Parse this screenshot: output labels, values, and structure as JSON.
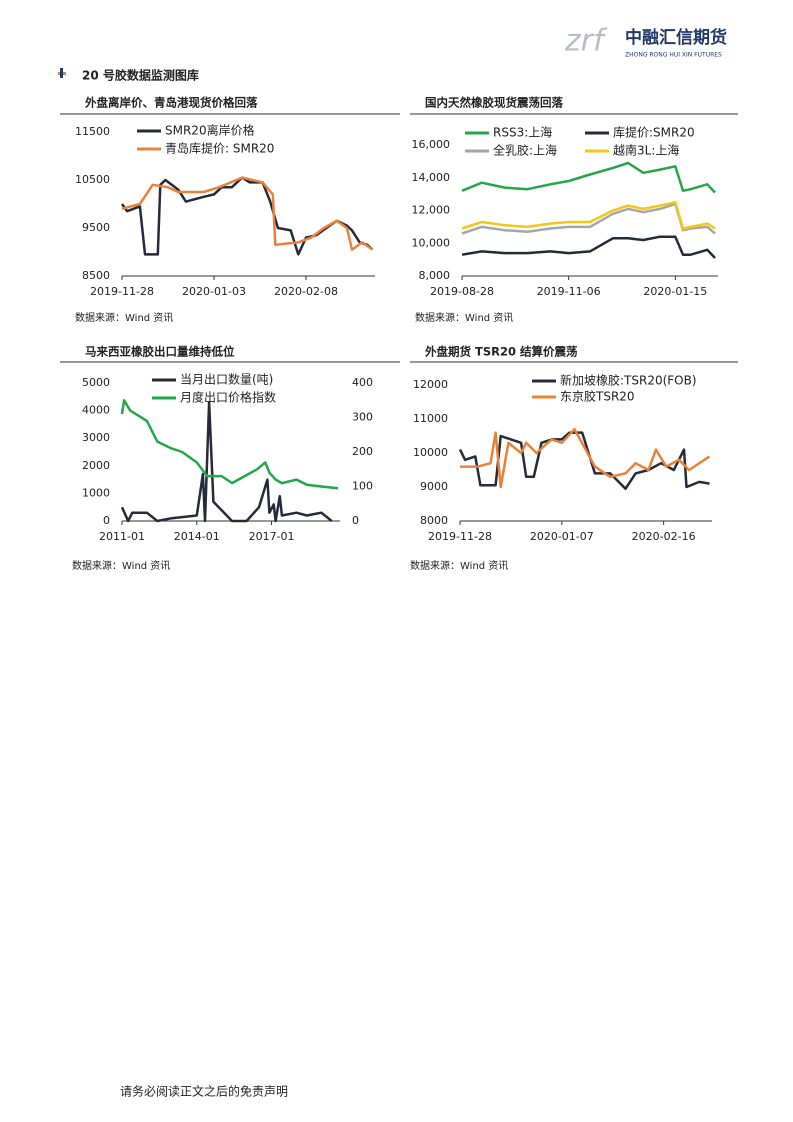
{
  "header": {
    "logo_cn": "中融汇信期货",
    "logo_en": "ZHONG RONG HUI XIN FUTURES"
  },
  "section_title": "20 号胶数据监测图库",
  "footer": "请务必阅读正文之后的免责声明",
  "chart_data": [
    {
      "type": "line",
      "title": "外盘离岸价、青岛港现货价格回落",
      "source": "数据来源：Wind 资讯",
      "xlim": [
        "2019-11-28",
        "2020-03-06"
      ],
      "xticks": [
        "2019-11-28",
        "2020-01-03",
        "2020-02-08"
      ],
      "ylim": [
        8500,
        11500
      ],
      "yticks": [
        8500,
        9500,
        10500,
        11500
      ],
      "series": [
        {
          "name": "SMR20离岸价格",
          "color": "#252b3a",
          "x": [
            "2019-11-28",
            "2019-11-30",
            "2019-12-05",
            "2019-12-07",
            "2019-12-12",
            "2019-12-13",
            "2019-12-15",
            "2019-12-20",
            "2019-12-23",
            "2019-12-30",
            "2020-01-03",
            "2020-01-06",
            "2020-01-10",
            "2020-01-14",
            "2020-01-17",
            "2020-01-22",
            "2020-01-25",
            "2020-01-28",
            "2020-02-02",
            "2020-02-05",
            "2020-02-08",
            "2020-02-12",
            "2020-02-16",
            "2020-02-20",
            "2020-02-24",
            "2020-02-26",
            "2020-02-29",
            "2020-03-03",
            "2020-03-05"
          ],
          "values": [
            10000,
            9850,
            9950,
            8950,
            8950,
            10400,
            10500,
            10300,
            10050,
            10150,
            10200,
            10350,
            10350,
            10550,
            10450,
            10450,
            10050,
            9500,
            9450,
            8950,
            9300,
            9350,
            9500,
            9650,
            9550,
            9450,
            9200,
            9150,
            9050
          ]
        },
        {
          "name": "青岛库提价: SMR20",
          "color": "#e8823a",
          "x": [
            "2019-11-28",
            "2019-12-05",
            "2019-12-10",
            "2019-12-16",
            "2019-12-20",
            "2019-12-30",
            "2020-01-05",
            "2020-01-14",
            "2020-01-22",
            "2020-01-26",
            "2020-01-27",
            "2020-02-05",
            "2020-02-10",
            "2020-02-15",
            "2020-02-20",
            "2020-02-24",
            "2020-02-26",
            "2020-03-01",
            "2020-03-05"
          ],
          "values": [
            9900,
            10000,
            10400,
            10350,
            10250,
            10250,
            10350,
            10550,
            10450,
            10200,
            9150,
            9200,
            9300,
            9500,
            9650,
            9500,
            9050,
            9200,
            9050
          ]
        }
      ]
    },
    {
      "type": "line",
      "title": "国内天然橡胶现货震荡回落",
      "source": "数据来源：Wind 资讯",
      "xlim": [
        "2019-08-28",
        "2020-02-12"
      ],
      "xticks": [
        "2019-08-28",
        "2019-11-06",
        "2020-01-15"
      ],
      "ylim": [
        8000,
        16000
      ],
      "yticks": [
        {
          "value": 8000,
          "label": "8,000"
        },
        {
          "value": 10000,
          "label": "10,000"
        },
        {
          "value": 12000,
          "label": "12,000"
        },
        {
          "value": 14000,
          "label": "14,000"
        },
        {
          "value": 16000,
          "label": "16,000"
        }
      ],
      "x": [
        "2019-08-28",
        "2019-09-10",
        "2019-09-25",
        "2019-10-10",
        "2019-10-25",
        "2019-11-06",
        "2019-11-20",
        "2019-12-05",
        "2019-12-15",
        "2019-12-25",
        "2020-01-05",
        "2020-01-15",
        "2020-01-20",
        "2020-01-25",
        "2020-02-05",
        "2020-02-10"
      ],
      "series": [
        {
          "name": "RSS3:上海",
          "color": "#22a84a",
          "values": [
            13200,
            13700,
            13400,
            13300,
            13600,
            13800,
            14200,
            14600,
            14900,
            14300,
            14500,
            14700,
            13200,
            13300,
            13600,
            13100
          ]
        },
        {
          "name": "库提价:SMR20",
          "color": "#252b3a",
          "values": [
            9300,
            9500,
            9400,
            9400,
            9500,
            9400,
            9500,
            10300,
            10300,
            10200,
            10400,
            10400,
            9300,
            9300,
            9600,
            9100
          ]
        },
        {
          "name": "全乳胶:上海",
          "color": "#a6a6a6",
          "values": [
            10600,
            11000,
            10800,
            10700,
            10900,
            11000,
            11000,
            11800,
            12100,
            11900,
            12100,
            12400,
            10800,
            10900,
            11000,
            10600
          ]
        },
        {
          "name": "越南3L:上海",
          "color": "#f5c518",
          "values": [
            10900,
            11300,
            11100,
            11000,
            11200,
            11300,
            11300,
            12000,
            12300,
            12100,
            12300,
            12500,
            10900,
            11000,
            11200,
            10900
          ]
        }
      ]
    },
    {
      "type": "line",
      "title": "马来西亚橡胶出口量维持低位",
      "source": "数据来源：Wind 资讯",
      "xlim": [
        "2011-01",
        "2019-10"
      ],
      "xticks": [
        "2011-01",
        "2014-01",
        "2017-01"
      ],
      "ylim": [
        0,
        5000
      ],
      "yticks": [
        0,
        1000,
        2000,
        3000,
        4000,
        5000
      ],
      "y2lim": [
        0,
        400
      ],
      "y2ticks": [
        0,
        100,
        200,
        300,
        400
      ],
      "series": [
        {
          "name": "当月出口数量(吨)",
          "color": "#252b3a",
          "x": [
            "2011-01",
            "2011-04",
            "2011-06",
            "2012-01",
            "2012-06",
            "2013-01",
            "2014-01",
            "2014-04",
            "2014-05",
            "2014-07",
            "2014-09",
            "2015-06",
            "2016-01",
            "2016-07",
            "2016-11",
            "2016-12",
            "2017-02",
            "2017-03",
            "2017-05",
            "2017-06",
            "2018-01",
            "2018-06",
            "2019-01",
            "2019-06"
          ],
          "values": [
            500,
            0,
            300,
            300,
            0,
            100,
            200,
            1700,
            0,
            4300,
            700,
            0,
            0,
            500,
            1500,
            300,
            600,
            0,
            900,
            200,
            300,
            200,
            300,
            0
          ]
        },
        {
          "name": "月度出口价格指数",
          "color": "#22a84a",
          "axis": "y2",
          "x": [
            "2011-01",
            "2011-02",
            "2011-05",
            "2012-01",
            "2012-06",
            "2013-01",
            "2013-06",
            "2014-01",
            "2014-06",
            "2015-01",
            "2015-06",
            "2016-06",
            "2016-10",
            "2016-12",
            "2017-03",
            "2017-06",
            "2018-01",
            "2018-06",
            "2019-01",
            "2019-09"
          ],
          "values": [
            310,
            350,
            320,
            290,
            230,
            210,
            200,
            170,
            130,
            130,
            110,
            150,
            170,
            140,
            120,
            110,
            120,
            105,
            100,
            95
          ]
        }
      ]
    },
    {
      "type": "line",
      "title": "外盘期货 TSR20 结算价震荡",
      "source": "数据来源：Wind 资讯",
      "xlim": [
        "2019-11-28",
        "2020-03-06"
      ],
      "xticks": [
        "2019-11-28",
        "2020-01-07",
        "2020-02-16"
      ],
      "ylim": [
        8000,
        12000
      ],
      "yticks": [
        8000,
        9000,
        10000,
        11000,
        12000
      ],
      "series": [
        {
          "name": "新加坡橡胶:TSR20(FOB)",
          "color": "#252b3a",
          "x": [
            "2019-11-28",
            "2019-11-30",
            "2019-12-04",
            "2019-12-06",
            "2019-12-12",
            "2019-12-14",
            "2019-12-18",
            "2019-12-22",
            "2019-12-24",
            "2019-12-27",
            "2019-12-30",
            "2020-01-03",
            "2020-01-07",
            "2020-01-10",
            "2020-01-15",
            "2020-01-20",
            "2020-01-26",
            "2020-02-01",
            "2020-02-05",
            "2020-02-10",
            "2020-02-15",
            "2020-02-20",
            "2020-02-24",
            "2020-02-25",
            "2020-03-01",
            "2020-03-05"
          ],
          "values": [
            10100,
            9800,
            9900,
            9050,
            9050,
            10500,
            10400,
            10300,
            9300,
            9300,
            10300,
            10400,
            10400,
            10600,
            10600,
            9400,
            9400,
            8950,
            9400,
            9500,
            9700,
            9500,
            10100,
            9000,
            9150,
            9100
          ]
        },
        {
          "name": "东京胶TSR20",
          "color": "#e8823a",
          "x": [
            "2019-11-28",
            "2019-12-05",
            "2019-12-10",
            "2019-12-12",
            "2019-12-14",
            "2019-12-17",
            "2019-12-22",
            "2019-12-24",
            "2019-12-28",
            "2020-01-03",
            "2020-01-07",
            "2020-01-12",
            "2020-01-20",
            "2020-01-26",
            "2020-02-01",
            "2020-02-05",
            "2020-02-10",
            "2020-02-13",
            "2020-02-17",
            "2020-02-22",
            "2020-02-26",
            "2020-03-05"
          ],
          "values": [
            9600,
            9600,
            9700,
            10600,
            9000,
            10300,
            10000,
            10300,
            10000,
            10400,
            10300,
            10700,
            9600,
            9300,
            9400,
            9700,
            9500,
            10100,
            9600,
            9800,
            9500,
            9900
          ]
        }
      ]
    }
  ]
}
